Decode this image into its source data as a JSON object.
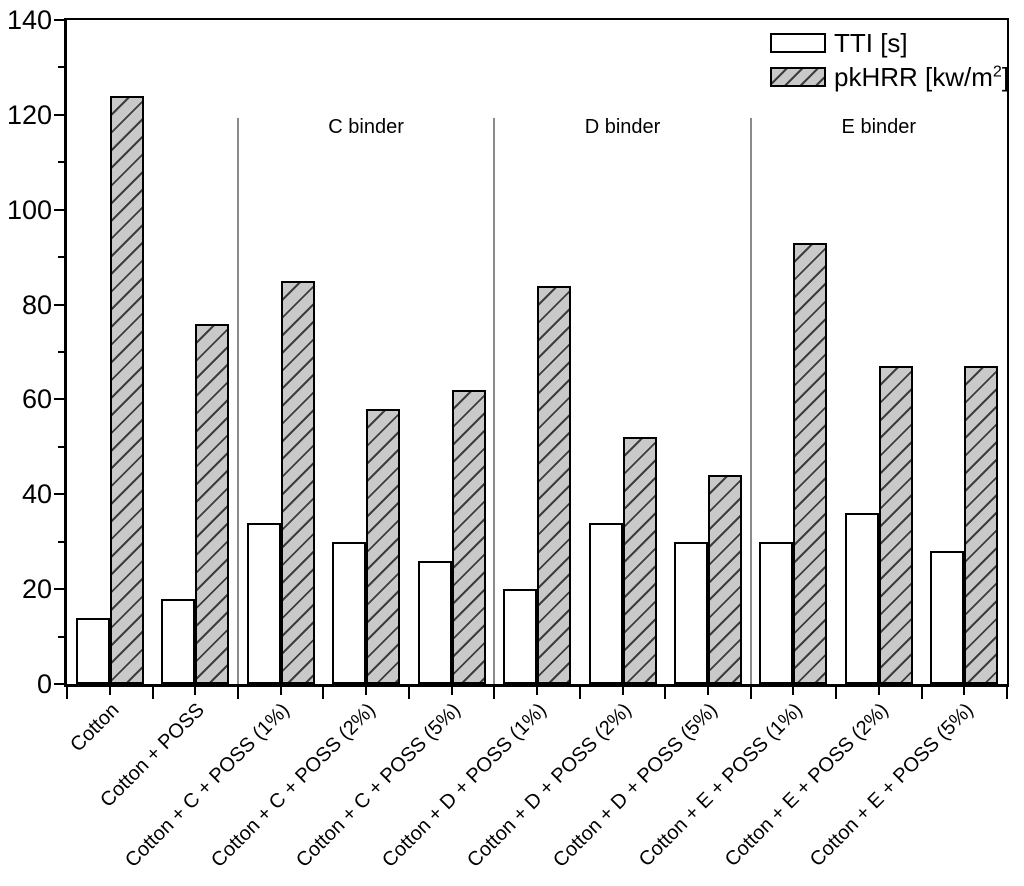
{
  "chart_data": {
    "type": "bar",
    "title": "",
    "xlabel": "",
    "ylabel": "",
    "grid": false,
    "categories": [
      "Cotton",
      "Cotton + POSS",
      "Cotton + C + POSS (1%)",
      "Cotton + C + POSS (2%)",
      "Cotton + C + POSS (5%)",
      "Cotton + D + POSS (1%)",
      "Cotton + D + POSS (2%)",
      "Cotton + D + POSS (5%)",
      "Cotton + E + POSS (1%)",
      "Cotton + E + POSS (2%)",
      "Cotton + E + POSS (5%)"
    ],
    "series": [
      {
        "name": "TTI [s]",
        "values": [
          14,
          18,
          34,
          30,
          26,
          20,
          34,
          30,
          30,
          36,
          28
        ],
        "fill": "#ffffff",
        "hatch": false
      },
      {
        "name": "pkHRR [kw/m2]",
        "values": [
          124,
          76,
          85,
          58,
          62,
          84,
          52,
          44,
          93,
          67,
          67
        ],
        "fill": "#c9c9c9",
        "hatch": true
      }
    ],
    "ylim": [
      0,
      140
    ],
    "ytick_major": 20,
    "ytick_minor": 10,
    "legend_position": "top-right",
    "group_sections": [
      {
        "label": "C binder",
        "start": 2,
        "end": 4
      },
      {
        "label": "D binder",
        "start": 5,
        "end": 7
      },
      {
        "label": "E binder",
        "start": 8,
        "end": 10
      }
    ],
    "divider_boundaries": [
      2,
      5,
      8
    ]
  },
  "legend": {
    "tti_label": "TTI [s]",
    "pkhrr_prefix": "pkHRR [kw/m",
    "pkhrr_sup": "2",
    "pkhrr_suffix": "]"
  },
  "colors": {
    "background": "#ffffff",
    "bar_border": "#000000",
    "tti_fill": "#ffffff",
    "pkhrr_fill": "#c9c9c9",
    "hatch_line": "#3d3d3d",
    "axis": "#000000",
    "divider": "#8a8a8a",
    "text": "#000000"
  }
}
